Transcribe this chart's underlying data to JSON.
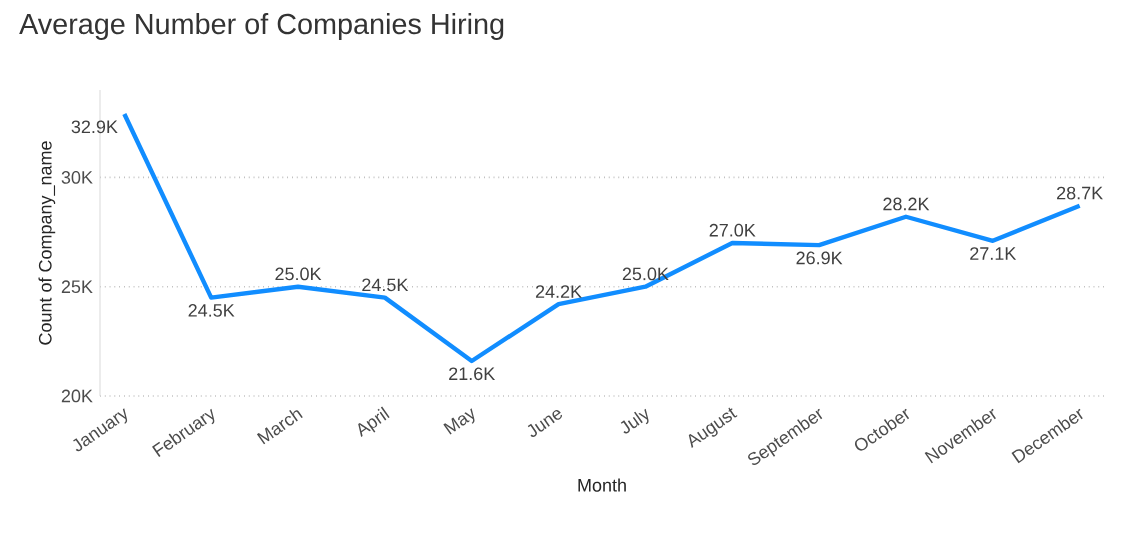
{
  "chart_data": {
    "type": "line",
    "title": "Average Number of Companies Hiring",
    "xlabel": "Month",
    "ylabel": "Count of Company_name",
    "categories": [
      "January",
      "February",
      "March",
      "April",
      "May",
      "June",
      "July",
      "August",
      "September",
      "October",
      "November",
      "December"
    ],
    "series": [
      {
        "color": "#118dff",
        "values": [
          32900,
          24500,
          25000,
          24500,
          21600,
          24200,
          25000,
          27000,
          26900,
          28200,
          27100,
          28700
        ],
        "value_labels": [
          "32.9K",
          "24.5K",
          "25.0K",
          "24.5K",
          "21.6K",
          "24.2K",
          "25.0K",
          "27.0K",
          "26.9K",
          "28.2K",
          "27.1K",
          "28.7K"
        ]
      }
    ],
    "ylim": [
      20000,
      34000
    ],
    "yticks": [
      {
        "value": 20000,
        "label": "20K"
      },
      {
        "value": 25000,
        "label": "25K"
      },
      {
        "value": 30000,
        "label": "30K"
      }
    ],
    "grid": "y",
    "line_style": "solid"
  }
}
